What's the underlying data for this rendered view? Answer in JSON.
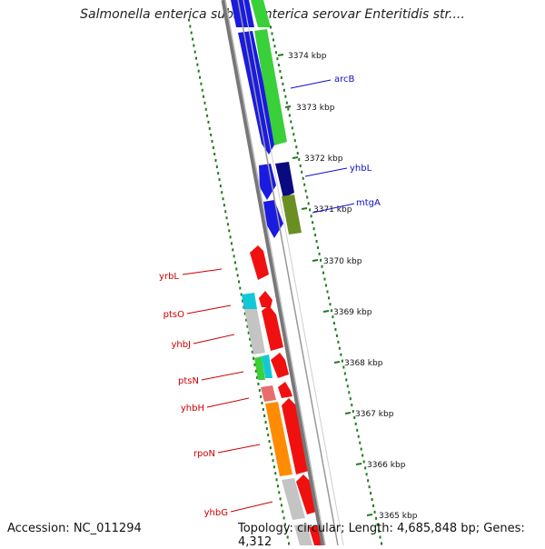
{
  "title": "Salmonella enterica subsp. enterica serovar Enteritidis str....",
  "footer": {
    "accession": "Accession: NC_011294",
    "topology": "Topology: circular; Length: 4,685,848 bp; Genes: 4,312"
  },
  "colors": {
    "forward_label": "#1010c8",
    "reverse_label": "#cc0000",
    "tick": "#1f7a1f",
    "backbone": "#888888"
  },
  "scale_ticks": [
    "3374 kbp",
    "3373 kbp",
    "3372 kbp",
    "3371 kbp",
    "3370 kbp",
    "3369 kbp",
    "3368 kbp",
    "3367 kbp",
    "3366 kbp",
    "3365 kbp"
  ],
  "forward_labels": [
    "arcB",
    "yhbL",
    "mtgA"
  ],
  "reverse_labels": [
    "yrbL",
    "ptsO",
    "yhbJ",
    "ptsN",
    "yhbH",
    "rpoN",
    "yhbG"
  ]
}
